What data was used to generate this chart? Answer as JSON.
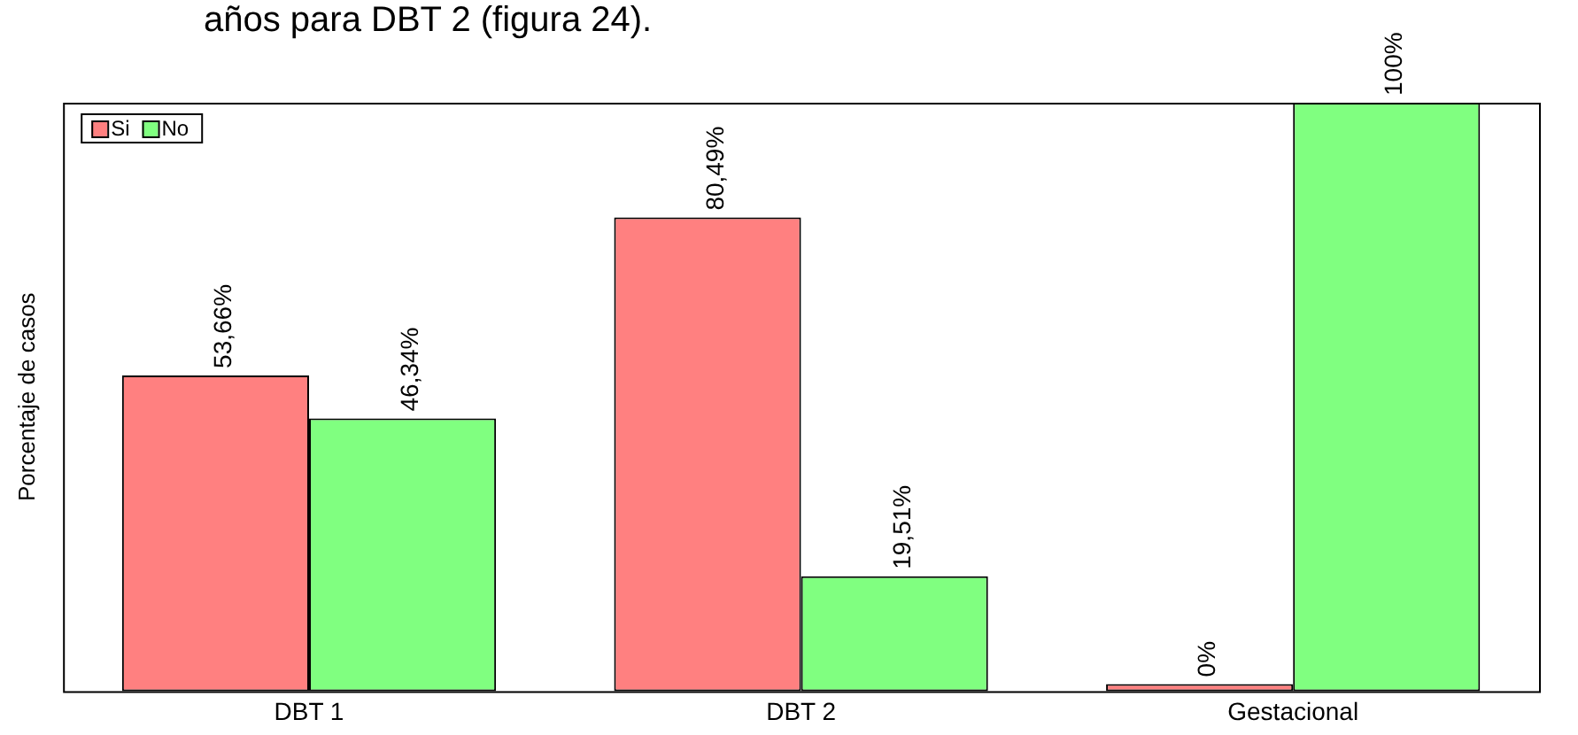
{
  "chart_data": {
    "type": "bar",
    "ylabel": "Porcentaje de casos",
    "categories": [
      "DBT 1",
      "DBT 2",
      "Gestacional"
    ],
    "series": [
      {
        "name": "Si",
        "color": "#ff8080",
        "values": [
          53.66,
          80.49,
          0
        ],
        "value_labels": [
          "53,66%",
          "80,49%",
          "0%"
        ]
      },
      {
        "name": "No",
        "color": "#80ff80",
        "values": [
          46.34,
          19.51,
          100
        ],
        "value_labels": [
          "46,34%",
          "19,51%",
          "100%"
        ]
      }
    ],
    "ylim": [
      0,
      100
    ],
    "legend": "top left",
    "grid": false,
    "tick_labels": "x",
    "annotations": [
      "años para DBT 2 (figura 24)."
    ]
  }
}
